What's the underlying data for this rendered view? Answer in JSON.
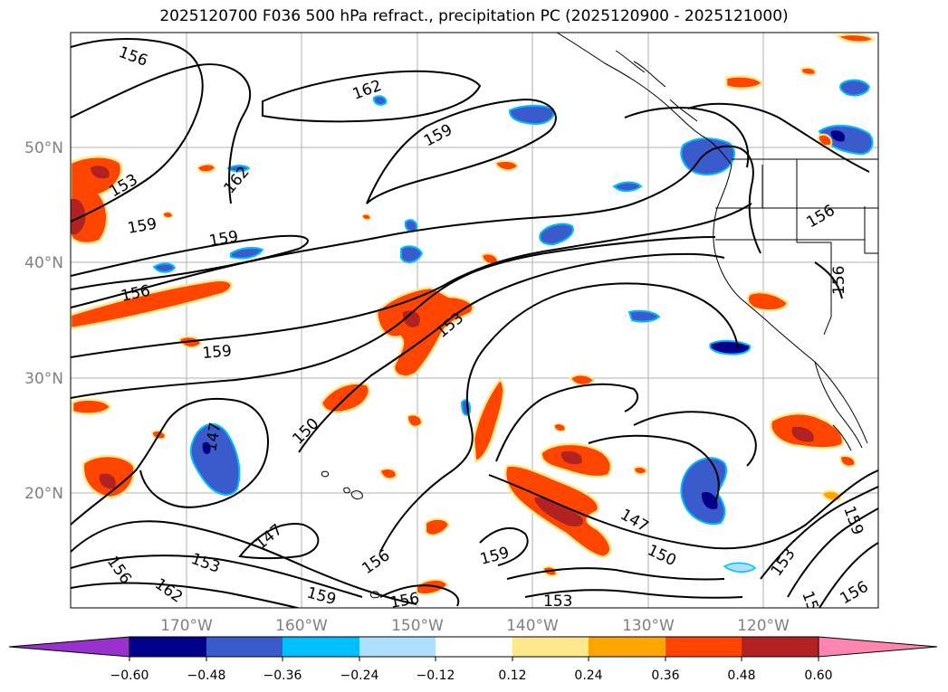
{
  "title": "2025120700 F036 500 hPa refract., precipitation PC (2025120900 - 2025121000)",
  "lat_labels": [
    "50°N",
    "40°N",
    "30°N",
    "20°N"
  ],
  "lon_labels": [
    "170°W",
    "160°W",
    "150°W",
    "140°W",
    "130°W",
    "120°W"
  ],
  "contour_labels": [
    "156",
    "162",
    "159",
    "153",
    "162",
    "159",
    "159",
    "156",
    "153",
    "159",
    "150",
    "147",
    "147",
    "153",
    "156",
    "162",
    "159",
    "156",
    "159",
    "153",
    "147",
    "150",
    "153",
    "156",
    "159",
    "15",
    "156",
    "156"
  ],
  "colorbar": {
    "ticks": [
      "−0.60",
      "−0.48",
      "−0.36",
      "−0.24",
      "−0.12",
      "0.12",
      "0.24",
      "0.36",
      "0.48",
      "0.60"
    ],
    "colors": [
      "#9932CC",
      "#00008B",
      "#3A5BCB",
      "#00BFFF",
      "#ADDFFF",
      "#FFFFFF",
      "#FFE88C",
      "#FFA500",
      "#FF4500",
      "#B22222",
      "#FF85B0"
    ]
  },
  "colors": {
    "outline": "#000000",
    "grid": "#b0b0b0",
    "axis_label": "#808080"
  }
}
